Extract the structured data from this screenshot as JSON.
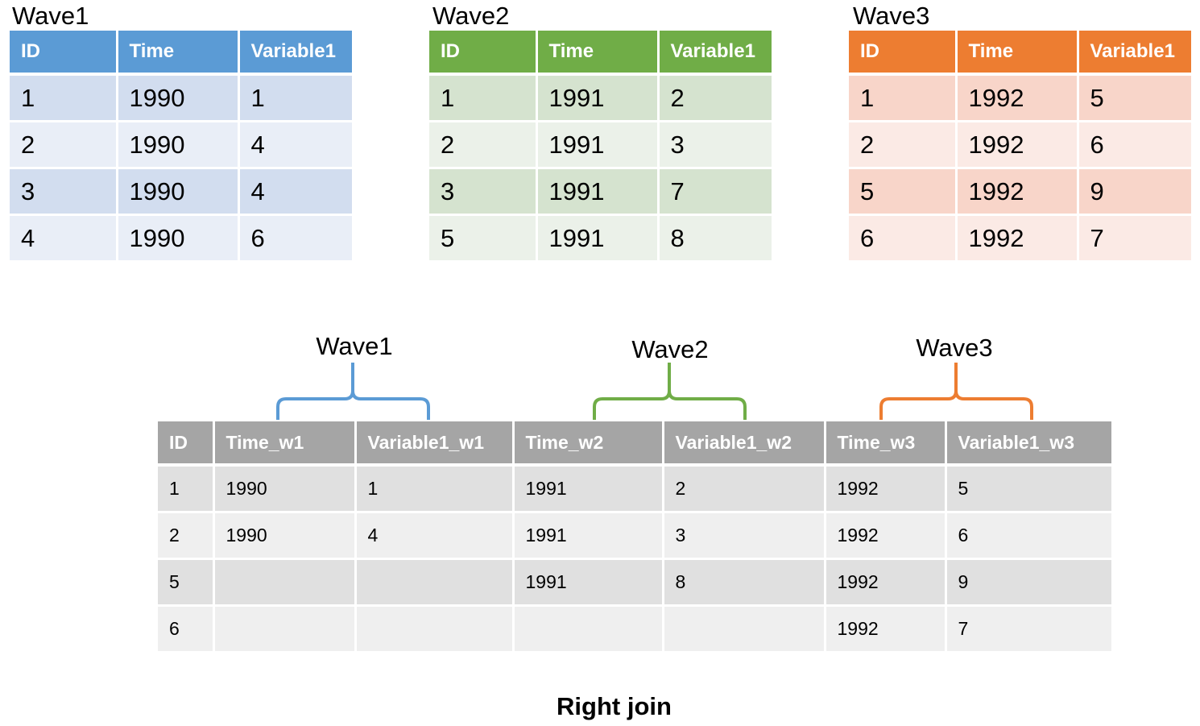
{
  "source_tables": [
    {
      "title": "Wave1",
      "color": "#5b9bd5",
      "headers": [
        "ID",
        "Time",
        "Variable1"
      ],
      "rows": [
        [
          "1",
          "1990",
          "1"
        ],
        [
          "2",
          "1990",
          "4"
        ],
        [
          "3",
          "1990",
          "4"
        ],
        [
          "4",
          "1990",
          "6"
        ]
      ]
    },
    {
      "title": "Wave2",
      "color": "#70ad47",
      "headers": [
        "ID",
        "Time",
        "Variable1"
      ],
      "rows": [
        [
          "1",
          "1991",
          "2"
        ],
        [
          "2",
          "1991",
          "3"
        ],
        [
          "3",
          "1991",
          "7"
        ],
        [
          "5",
          "1991",
          "8"
        ]
      ]
    },
    {
      "title": "Wave3",
      "color": "#ed7d31",
      "headers": [
        "ID",
        "Time",
        "Variable1"
      ],
      "rows": [
        [
          "1",
          "1992",
          "5"
        ],
        [
          "2",
          "1992",
          "6"
        ],
        [
          "5",
          "1992",
          "9"
        ],
        [
          "6",
          "1992",
          "7"
        ]
      ]
    }
  ],
  "joined": {
    "brace_labels": [
      "Wave1",
      "Wave2",
      "Wave3"
    ],
    "headers": [
      "ID",
      "Time_w1",
      "Variable1_w1",
      "Time_w2",
      "Variable1_w2",
      "Time_w3",
      "Variable1_w3"
    ],
    "rows": [
      [
        "1",
        "1990",
        "1",
        "1991",
        "2",
        "1992",
        "5"
      ],
      [
        "2",
        "1990",
        "4",
        "1991",
        "3",
        "1992",
        "6"
      ],
      [
        "5",
        "",
        "",
        "1991",
        "8",
        "1992",
        "9"
      ],
      [
        "6",
        "",
        "",
        "",
        "",
        "1992",
        "7"
      ]
    ]
  },
  "caption": "Right join"
}
